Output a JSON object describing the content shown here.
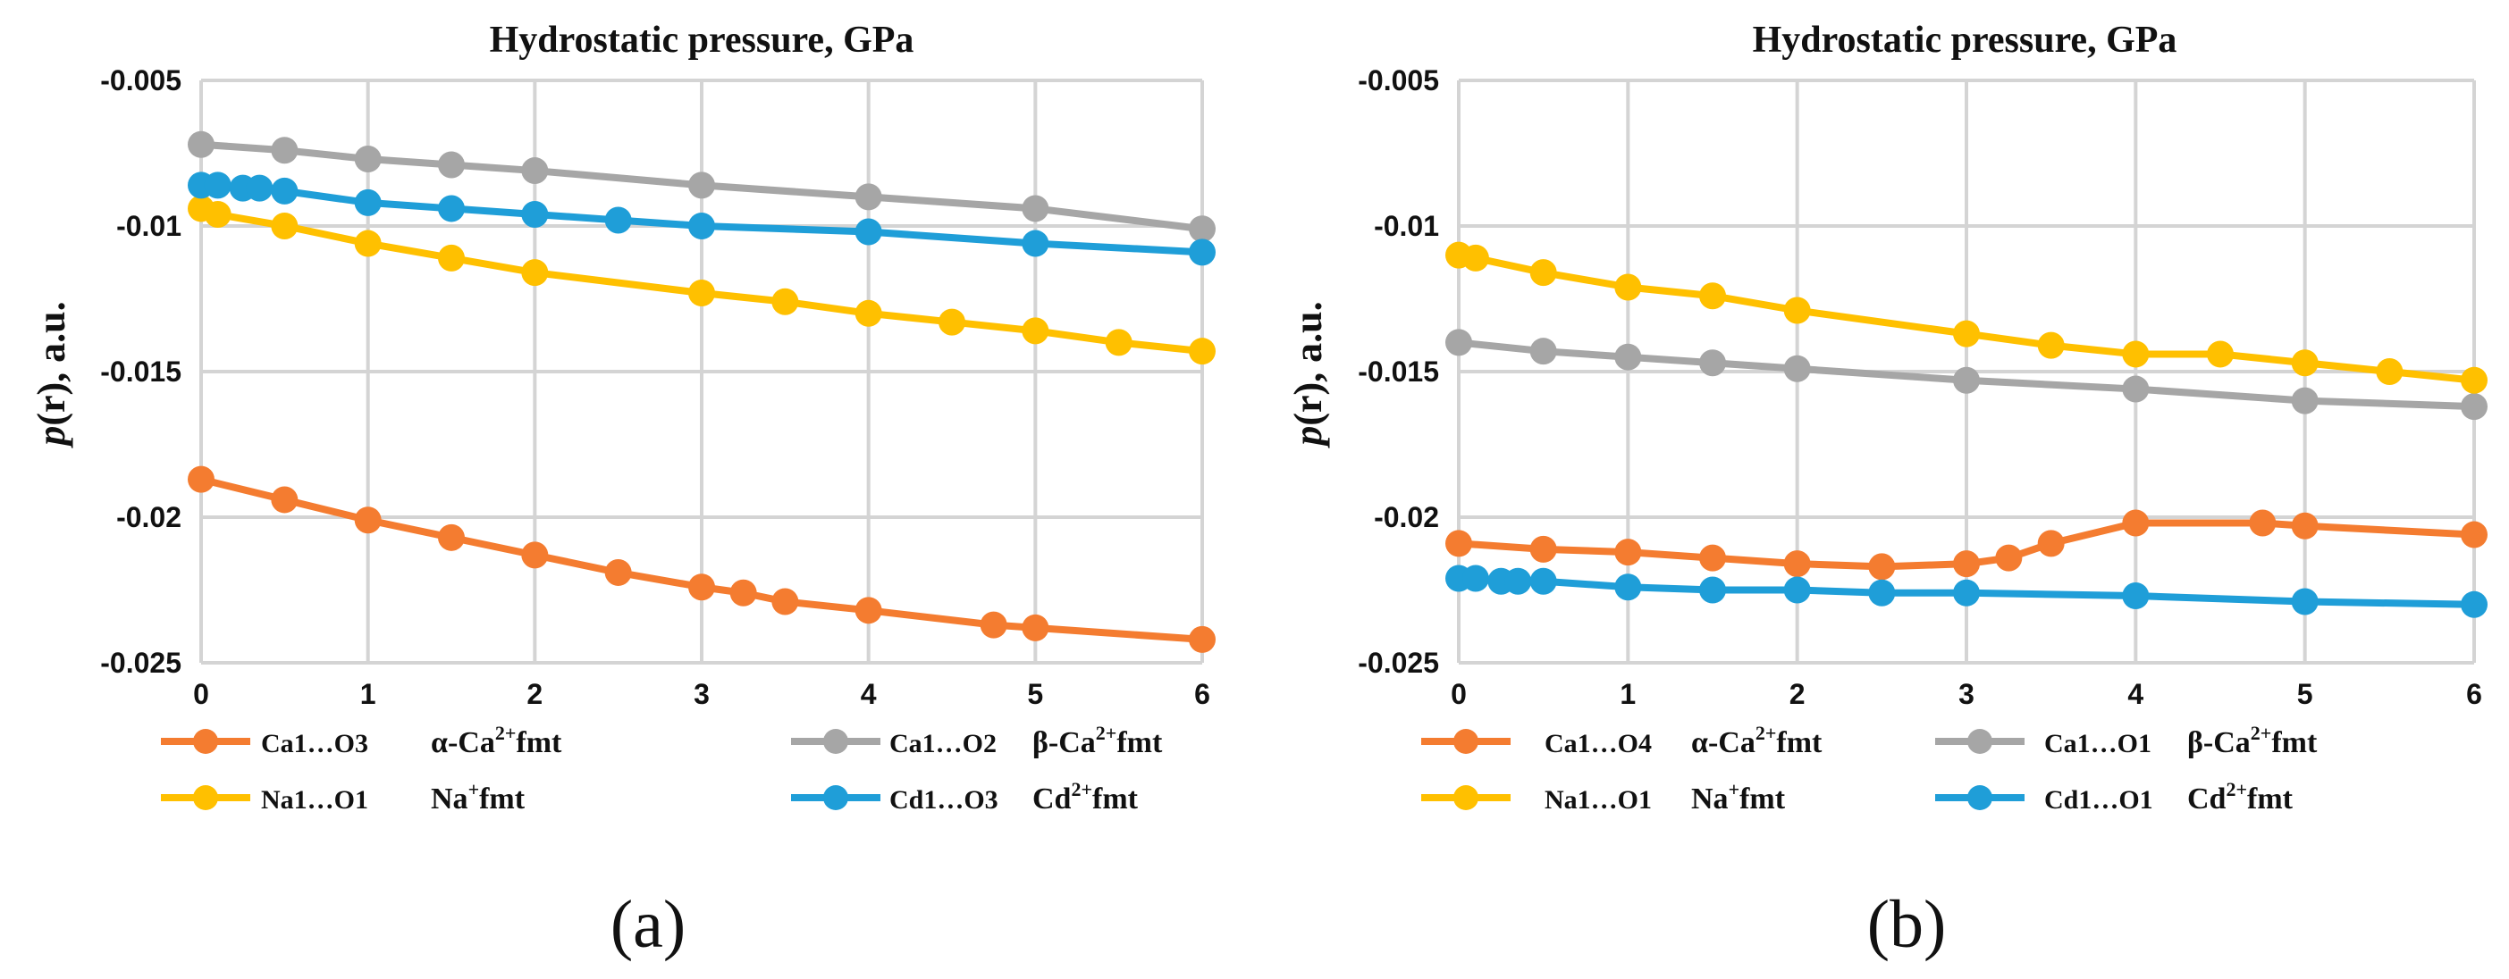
{
  "chart_data": [
    {
      "type": "line",
      "title": "Hydrostatic pressure, GPa",
      "ylabel_italic": "p",
      "ylabel_rest": "(r), a.u.",
      "panel_label": "(a)",
      "xlim": [
        0,
        6
      ],
      "ylim": [
        -0.025,
        -0.005
      ],
      "x_ticks": [
        0,
        1,
        2,
        3,
        4,
        5,
        6
      ],
      "x_tick_labels": [
        "0",
        "1",
        "2",
        "3",
        "4",
        "5",
        "6"
      ],
      "y_ticks": [
        -0.005,
        -0.01,
        -0.015,
        -0.02,
        -0.025
      ],
      "y_tick_labels": [
        "-0.005",
        "-0.01",
        "-0.015",
        "-0.02",
        "-0.025"
      ],
      "grid": true,
      "series": [
        {
          "key": "ca-o3",
          "bond": "Ca1…O3",
          "name": "α-Ca",
          "sup": "2+",
          "suffix": "fmt",
          "color": "#f47c30",
          "x": [
            0,
            0.5,
            1,
            1.5,
            2,
            2.5,
            3,
            3.25,
            3.5,
            4,
            4.75,
            5,
            6
          ],
          "y": [
            -0.0187,
            -0.0194,
            -0.0201,
            -0.0207,
            -0.0213,
            -0.0219,
            -0.0224,
            -0.0226,
            -0.0229,
            -0.0232,
            -0.0237,
            -0.0238,
            -0.0242
          ]
        },
        {
          "key": "ca-o2",
          "bond": "Ca1…O2",
          "name": "β-Ca",
          "sup": "2+",
          "suffix": "fmt",
          "color": "#a6a6a6",
          "x": [
            0,
            0.5,
            1,
            1.5,
            2,
            3,
            4,
            5,
            6
          ],
          "y": [
            -0.0072,
            -0.0074,
            -0.0077,
            -0.0079,
            -0.0081,
            -0.0086,
            -0.009,
            -0.0094,
            -0.0101
          ]
        },
        {
          "key": "na-o1",
          "bond": "Na1…O1",
          "name": "Na",
          "sup": "+",
          "suffix": "fmt",
          "color": "#ffc000",
          "x": [
            0,
            0.1,
            0.5,
            1,
            1.5,
            2,
            3,
            3.5,
            4,
            4.5,
            5,
            5.5,
            6
          ],
          "y": [
            -0.0094,
            -0.0096,
            -0.01,
            -0.0106,
            -0.0111,
            -0.0116,
            -0.0123,
            -0.0126,
            -0.013,
            -0.0133,
            -0.0136,
            -0.014,
            -0.0143
          ]
        },
        {
          "key": "cd-o3",
          "bond": "Cd1…O3",
          "name": "Cd",
          "sup": "2+",
          "suffix": "fmt",
          "color": "#1f9ed8",
          "x": [
            0,
            0.1,
            0.25,
            0.35,
            0.5,
            1,
            1.5,
            2,
            2.5,
            3,
            4,
            5,
            6
          ],
          "y": [
            -0.0086,
            -0.0086,
            -0.0087,
            -0.0087,
            -0.0088,
            -0.0092,
            -0.0094,
            -0.0096,
            -0.0098,
            -0.01,
            -0.0102,
            -0.0106,
            -0.0109
          ]
        }
      ]
    },
    {
      "type": "line",
      "title": "Hydrostatic pressure, GPa",
      "ylabel_italic": "p",
      "ylabel_rest": "(r), a.u.",
      "panel_label": "(b)",
      "xlim": [
        0,
        6
      ],
      "ylim": [
        -0.025,
        -0.005
      ],
      "x_ticks": [
        0,
        1,
        2,
        3,
        4,
        5,
        6
      ],
      "x_tick_labels": [
        "0",
        "1",
        "2",
        "3",
        "4",
        "5",
        "6"
      ],
      "y_ticks": [
        -0.005,
        -0.01,
        -0.015,
        -0.02,
        -0.025
      ],
      "y_tick_labels": [
        "-0.005",
        "-0.01",
        "-0.015",
        "-0.02",
        "-0.025"
      ],
      "grid": true,
      "series": [
        {
          "key": "ca-o4",
          "bond": "Ca1…O4",
          "name": "α-Ca",
          "sup": "2+",
          "suffix": "fmt",
          "color": "#f47c30",
          "x": [
            0,
            0.5,
            1,
            1.5,
            2,
            2.5,
            3,
            3.25,
            3.5,
            4,
            4.75,
            5,
            6
          ],
          "y": [
            -0.0209,
            -0.0211,
            -0.0212,
            -0.0214,
            -0.0216,
            -0.0217,
            -0.0216,
            -0.0214,
            -0.0209,
            -0.0202,
            -0.0202,
            -0.0203,
            -0.0206
          ]
        },
        {
          "key": "ca-o1",
          "bond": "Ca1…O1",
          "name": "β-Ca",
          "sup": "2+",
          "suffix": "fmt",
          "color": "#a6a6a6",
          "x": [
            0,
            0.5,
            1,
            1.5,
            2,
            3,
            4,
            5,
            6
          ],
          "y": [
            -0.014,
            -0.0143,
            -0.0145,
            -0.0147,
            -0.0149,
            -0.0153,
            -0.0156,
            -0.016,
            -0.0162
          ]
        },
        {
          "key": "na-o1-b",
          "bond": "Na1…O1",
          "name": "Na",
          "sup": "+",
          "suffix": "fmt",
          "color": "#ffc000",
          "x": [
            0,
            0.1,
            0.5,
            1,
            1.5,
            2,
            3,
            3.5,
            4,
            4.5,
            5,
            5.5,
            6
          ],
          "y": [
            -0.011,
            -0.0111,
            -0.0116,
            -0.0121,
            -0.0124,
            -0.0129,
            -0.0137,
            -0.0141,
            -0.0144,
            -0.0144,
            -0.0147,
            -0.015,
            -0.0153
          ]
        },
        {
          "key": "cd-o1",
          "bond": "Cd1…O1",
          "name": "Cd",
          "sup": "2+",
          "suffix": "fmt",
          "color": "#1f9ed8",
          "x": [
            0,
            0.1,
            0.25,
            0.35,
            0.5,
            1,
            1.5,
            2,
            2.5,
            3,
            4,
            5,
            6
          ],
          "y": [
            -0.0221,
            -0.0221,
            -0.0222,
            -0.0222,
            -0.0222,
            -0.0224,
            -0.0225,
            -0.0225,
            -0.0226,
            -0.0226,
            -0.0227,
            -0.0229,
            -0.023
          ]
        }
      ]
    }
  ]
}
